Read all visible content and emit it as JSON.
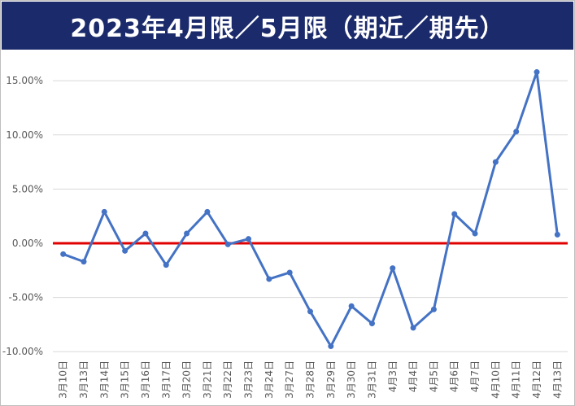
{
  "chart_data": {
    "type": "line",
    "title": "2023年4月限／5月限（期近／期先）",
    "xlabel": "",
    "ylabel": "",
    "ylim": [
      -0.1,
      0.175
    ],
    "yticks": [
      {
        "value": 0.15,
        "label": "15.00%"
      },
      {
        "value": 0.1,
        "label": "10.00%"
      },
      {
        "value": 0.05,
        "label": "5.00%"
      },
      {
        "value": 0.0,
        "label": "0.00%"
      },
      {
        "value": -0.05,
        "label": "-5.00%"
      },
      {
        "value": -0.1,
        "label": "-10.00%"
      }
    ],
    "grid": true,
    "legend": "none",
    "categories": [
      "3月10日",
      "3月13日",
      "3月14日",
      "3月15日",
      "3月16日",
      "3月17日",
      "3月20日",
      "3月21日",
      "3月22日",
      "3月23日",
      "3月24日",
      "3月27日",
      "3月28日",
      "3月29日",
      "3月30日",
      "3月31日",
      "4月3日",
      "4月4日",
      "4月5日",
      "4月6日",
      "4月7日",
      "4月10日",
      "4月11日",
      "4月12日",
      "4月13日"
    ],
    "series": [
      {
        "values": [
          -0.01,
          -0.017,
          0.029,
          -0.007,
          0.009,
          -0.02,
          0.009,
          0.029,
          -0.001,
          0.004,
          -0.033,
          -0.027,
          -0.063,
          -0.095,
          -0.058,
          -0.074,
          -0.023,
          -0.078,
          -0.061,
          0.027,
          0.009,
          0.075,
          0.103,
          0.158,
          0.008
        ],
        "color": "#4472c4"
      }
    ],
    "reference_line": {
      "value": 0.0,
      "color": "#e00000"
    }
  }
}
